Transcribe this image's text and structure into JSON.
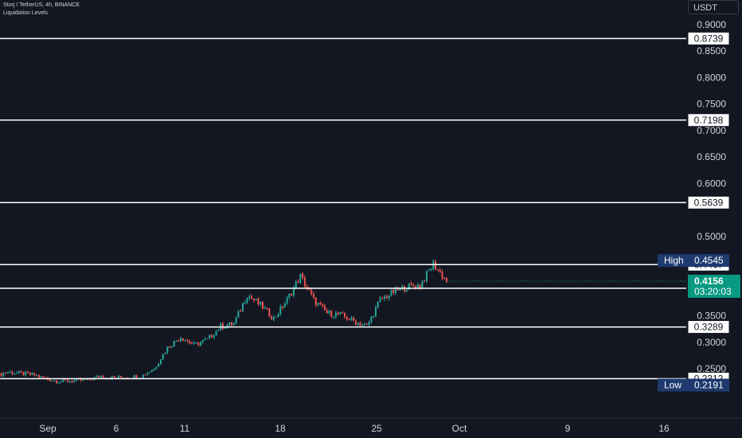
{
  "header": {
    "symbol_line": "Storj / TetherUS, 4h, BINANCE",
    "indicator_line": "Liquidation Levels"
  },
  "price_scale": {
    "currency": "USDT"
  },
  "colors": {
    "background": "#131722",
    "up": "#26a69a",
    "down": "#ef5350",
    "level_line": "#ffffff",
    "current_price": "#089981",
    "high_low_badge": "#1e3a6e",
    "text": "#d1d4dc"
  },
  "chart_data": {
    "type": "candlestick",
    "y_ticks": [
      "0.9000",
      "0.8500",
      "0.8000",
      "0.7500",
      "0.7000",
      "0.6500",
      "0.6000",
      "0.5000",
      "0.3500",
      "0.3000",
      "0.2500"
    ],
    "x_ticks": [
      "Sep",
      "6",
      "11",
      "18",
      "25",
      "Oct",
      "9",
      "16"
    ],
    "ylim": [
      0.19,
      0.92
    ],
    "levels": [
      0.8739,
      0.7198,
      0.5639,
      0.4467,
      0.402,
      0.3289,
      0.2312
    ],
    "level_labels": [
      "0.8739",
      "0.7198",
      "0.5639",
      "0.4467",
      "0.4020",
      "0.3289",
      "0.2312"
    ],
    "high": {
      "label": "High",
      "value": 0.4545,
      "text": "0.4545"
    },
    "low": {
      "label": "Low",
      "value": 0.2191,
      "text": "0.2191"
    },
    "current": {
      "value": 0.4156,
      "text": "0.4156",
      "countdown": "03:20:03"
    },
    "close_path": [
      {
        "x": "Aug 28",
        "y": 0.235
      },
      {
        "x": "Aug 29",
        "y": 0.244
      },
      {
        "x": "Aug 31",
        "y": 0.238
      },
      {
        "x": "Sep 1",
        "y": 0.23
      },
      {
        "x": "Sep 2",
        "y": 0.226
      },
      {
        "x": "Sep 4",
        "y": 0.229
      },
      {
        "x": "Sep 5",
        "y": 0.236
      },
      {
        "x": "Sep 6",
        "y": 0.233
      },
      {
        "x": "Sep 8",
        "y": 0.236
      },
      {
        "x": "Sep 9",
        "y": 0.25
      },
      {
        "x": "Sep 10",
        "y": 0.29
      },
      {
        "x": "Sep 11",
        "y": 0.31
      },
      {
        "x": "Sep 12",
        "y": 0.295
      },
      {
        "x": "Sep 13",
        "y": 0.305
      },
      {
        "x": "Sep 14",
        "y": 0.33
      },
      {
        "x": "Sep 15",
        "y": 0.335
      },
      {
        "x": "Sep 16",
        "y": 0.39
      },
      {
        "x": "Sep 17",
        "y": 0.37
      },
      {
        "x": "Sep 18",
        "y": 0.345
      },
      {
        "x": "Sep 19",
        "y": 0.38
      },
      {
        "x": "Sep 20",
        "y": 0.425
      },
      {
        "x": "Sep 21",
        "y": 0.38
      },
      {
        "x": "Sep 22",
        "y": 0.355
      },
      {
        "x": "Sep 23",
        "y": 0.352
      },
      {
        "x": "Sep 24",
        "y": 0.34
      },
      {
        "x": "Sep 25",
        "y": 0.33
      },
      {
        "x": "Sep 26",
        "y": 0.38
      },
      {
        "x": "Sep 27",
        "y": 0.395
      },
      {
        "x": "Sep 28",
        "y": 0.405
      },
      {
        "x": "Sep 29",
        "y": 0.408
      },
      {
        "x": "Sep 30",
        "y": 0.448
      },
      {
        "x": "Oct 1",
        "y": 0.4156
      }
    ]
  }
}
